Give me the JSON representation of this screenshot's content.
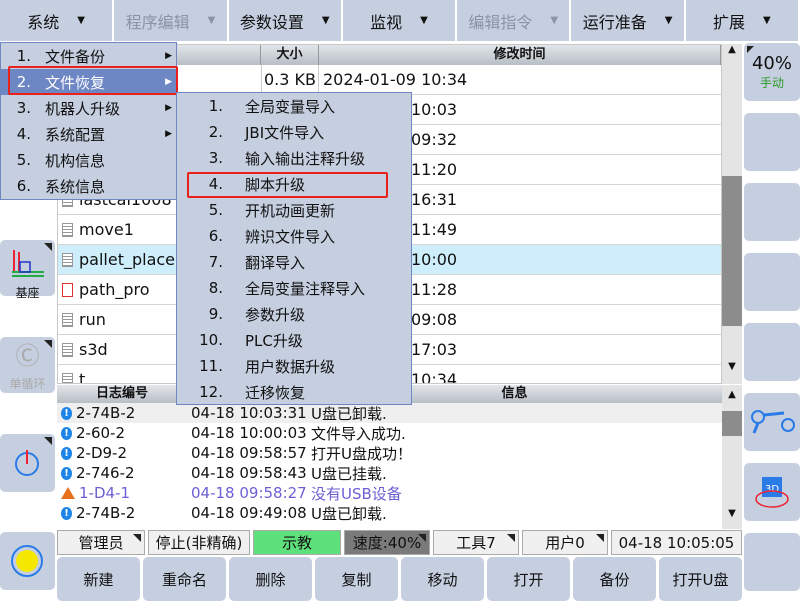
{
  "topmenu": [
    {
      "label": "系统",
      "enabled": true
    },
    {
      "label": "程序编辑",
      "enabled": false
    },
    {
      "label": "参数设置",
      "enabled": true
    },
    {
      "label": "监视",
      "enabled": true
    },
    {
      "label": "编辑指令",
      "enabled": false
    },
    {
      "label": "运行准备",
      "enabled": true
    },
    {
      "label": "扩展",
      "enabled": true
    }
  ],
  "file_table": {
    "headers": [
      "",
      "大小",
      "修改时间"
    ],
    "rows": [
      {
        "name": "",
        "size": "0.3 KB",
        "time": "2024-01-09 10:34",
        "icon": "file-icon"
      },
      {
        "name": "",
        "size": "",
        "time": "10:03",
        "icon": "file-icon"
      },
      {
        "name": "",
        "size": "",
        "time": "09:32",
        "icon": "file-icon"
      },
      {
        "name": "",
        "size": "",
        "time": "11:20",
        "icon": "file-icon"
      },
      {
        "name": "lastcal1008",
        "size": "",
        "time": "16:31",
        "icon": "file-icon"
      },
      {
        "name": "move1",
        "size": "",
        "time": "11:49",
        "icon": "file-icon"
      },
      {
        "name": "pallet_place",
        "size": "",
        "time": "10:00",
        "icon": "file-icon",
        "selected": true
      },
      {
        "name": "path_pro",
        "size": "",
        "time": "11:28",
        "icon": "file-error-icon"
      },
      {
        "name": "run",
        "size": "",
        "time": "09:08",
        "icon": "file-icon"
      },
      {
        "name": "s3d",
        "size": "",
        "time": "17:03",
        "icon": "file-icon"
      },
      {
        "name": "t",
        "size": "",
        "time": "10:34",
        "icon": "file-icon"
      }
    ]
  },
  "system_menu": [
    {
      "num": "1.",
      "label": "文件备份"
    },
    {
      "num": "2.",
      "label": "文件恢复",
      "selected": true
    },
    {
      "num": "3.",
      "label": "机器人升级"
    },
    {
      "num": "4.",
      "label": "系统配置"
    },
    {
      "num": "5.",
      "label": "机构信息"
    },
    {
      "num": "6.",
      "label": "系统信息"
    }
  ],
  "restore_submenu": [
    {
      "num": "1.",
      "label": "全局变量导入"
    },
    {
      "num": "2.",
      "label": "JBI文件导入"
    },
    {
      "num": "3.",
      "label": "输入输出注释升级"
    },
    {
      "num": "4.",
      "label": "脚本升级",
      "highlighted": true
    },
    {
      "num": "5.",
      "label": "开机动画更新"
    },
    {
      "num": "6.",
      "label": "辨识文件导入"
    },
    {
      "num": "7.",
      "label": "翻译导入"
    },
    {
      "num": "8.",
      "label": "全局变量注释导入"
    },
    {
      "num": "9.",
      "label": "参数升级"
    },
    {
      "num": "10.",
      "label": "PLC升级"
    },
    {
      "num": "11.",
      "label": "用户数据升级"
    },
    {
      "num": "12.",
      "label": "迁移恢复"
    }
  ],
  "log_table": {
    "headers": [
      "日志编号",
      "",
      "信息"
    ],
    "rows": [
      {
        "id": "2-74B-2",
        "time": "04-18 10:03:31",
        "msg": "U盘已卸载.",
        "level": "info"
      },
      {
        "id": "2-60-2",
        "time": "04-18 10:00:03",
        "msg": "文件导入成功.",
        "level": "info"
      },
      {
        "id": "2-D9-2",
        "time": "04-18 09:58:57",
        "msg": "打开U盘成功！",
        "level": "info"
      },
      {
        "id": "2-746-2",
        "time": "04-18 09:58:43",
        "msg": "U盘已挂载.",
        "level": "info"
      },
      {
        "id": "1-D4-1",
        "time": "04-18 09:58:27",
        "msg": "没有USB设备",
        "level": "warning"
      },
      {
        "id": "2-74B-2",
        "time": "04-18 09:49:08",
        "msg": "U盘已卸载.",
        "level": "info"
      }
    ]
  },
  "left_panel": {
    "coord_label": "基座",
    "cycle_label": "单循环"
  },
  "right_panel": {
    "speed": "40%",
    "mode": "手动"
  },
  "status": {
    "user": "管理员",
    "state": "停止(非精确)",
    "mode": "示教",
    "speed": "速度:40%",
    "tool": "工具7",
    "user_frame": "用户0",
    "datetime": "04-18 10:05:05"
  },
  "colors": {
    "mode_active": "#5ee07a",
    "speed_bg": "#7a7a7a",
    "highlight_border": "#e8221b",
    "menu_selected": "#6d86c4"
  },
  "bottom_buttons": [
    "新建",
    "重命名",
    "删除",
    "复制",
    "移动",
    "打开",
    "备份",
    "打开U盘"
  ]
}
